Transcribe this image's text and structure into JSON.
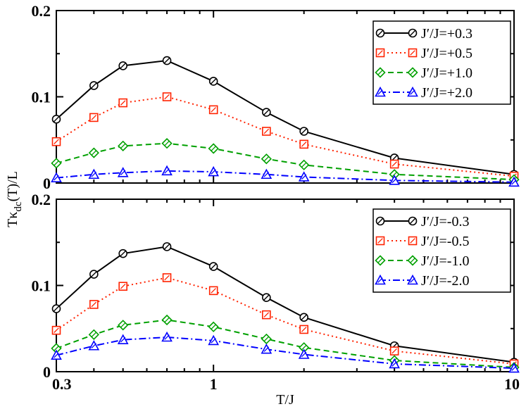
{
  "chart_data": {
    "type": "line",
    "xscale": "log",
    "xlabel": "T/J",
    "ylabel_main": "Tκ",
    "ylabel_sub": "dc",
    "ylabel_tail": "(T)/L",
    "xlim": [
      0.3,
      10
    ],
    "x_ticks": [
      {
        "value": 0.3,
        "label": "0.3"
      },
      {
        "value": 1,
        "label": "1"
      },
      {
        "value": 10,
        "label": "10"
      }
    ],
    "y_ticks": [
      {
        "value": 0,
        "label": "0"
      },
      {
        "value": 0.1,
        "label": "0.1"
      },
      {
        "value": 0.2,
        "label": "0.2"
      }
    ],
    "x": [
      0.3,
      0.4,
      0.5,
      0.7,
      1.0,
      1.5,
      2.0,
      4.0,
      10.0
    ],
    "panels": [
      {
        "name": "top",
        "ylim": [
          0,
          0.2
        ],
        "series": [
          {
            "name": "J′/J=+0.3",
            "color": "#000000",
            "marker": "circle",
            "dash": "solid",
            "values": [
              0.074,
              0.113,
              0.136,
              0.142,
              0.118,
              0.082,
              0.06,
              0.029,
              0.01
            ]
          },
          {
            "name": "J′/J=+0.5",
            "color": "#ff2200",
            "marker": "square",
            "dash": "dotted",
            "values": [
              0.048,
              0.076,
              0.093,
              0.1,
              0.085,
              0.06,
              0.045,
              0.022,
              0.008
            ]
          },
          {
            "name": "J′/J=+1.0",
            "color": "#00a000",
            "marker": "diamond",
            "dash": "dashed",
            "values": [
              0.023,
              0.035,
              0.043,
              0.046,
              0.04,
              0.028,
              0.021,
              0.01,
              0.004
            ]
          },
          {
            "name": "J′/J=+2.0",
            "color": "#0000ff",
            "marker": "triangle",
            "dash": "dashdot",
            "values": [
              0.006,
              0.01,
              0.012,
              0.014,
              0.013,
              0.01,
              0.007,
              0.003,
              0.001
            ]
          }
        ]
      },
      {
        "name": "bottom",
        "ylim": [
          0,
          0.2
        ],
        "series": [
          {
            "name": "J′/J=-0.3",
            "color": "#000000",
            "marker": "circle",
            "dash": "solid",
            "values": [
              0.073,
              0.113,
              0.137,
              0.145,
              0.122,
              0.086,
              0.063,
              0.03,
              0.011
            ]
          },
          {
            "name": "J′/J=-0.5",
            "color": "#ff2200",
            "marker": "square",
            "dash": "dotted",
            "values": [
              0.048,
              0.078,
              0.099,
              0.109,
              0.094,
              0.066,
              0.049,
              0.024,
              0.009
            ]
          },
          {
            "name": "J′/J=-1.0",
            "color": "#00a000",
            "marker": "diamond",
            "dash": "dashed",
            "values": [
              0.027,
              0.043,
              0.054,
              0.06,
              0.052,
              0.038,
              0.028,
              0.013,
              0.005
            ]
          },
          {
            "name": "J′/J=-2.0",
            "color": "#0000ff",
            "marker": "triangle",
            "dash": "dashdot",
            "values": [
              0.019,
              0.03,
              0.037,
              0.04,
              0.036,
              0.026,
              0.02,
              0.009,
              0.004
            ]
          }
        ]
      }
    ]
  }
}
